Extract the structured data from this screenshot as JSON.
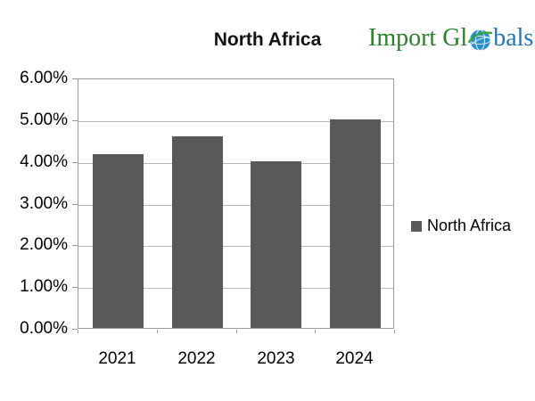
{
  "title": "North Africa",
  "logo": {
    "text_green": "Import Gl",
    "text_blue": "bals",
    "green_color": "#2c7f2c",
    "blue_color": "#2374b5",
    "globe_blue": "#2b8fce",
    "globe_green": "#3aa53a"
  },
  "chart_data": {
    "type": "bar",
    "title": "North Africa",
    "categories": [
      "2021",
      "2022",
      "2023",
      "2024"
    ],
    "series": [
      {
        "name": "North Africa",
        "values": [
          4.17,
          4.6,
          4.0,
          5.0
        ]
      }
    ],
    "value_unit": "%",
    "ylim": [
      0,
      6
    ],
    "ytick_step": 1,
    "ytick_labels": [
      "0.00%",
      "1.00%",
      "2.00%",
      "3.00%",
      "4.00%",
      "5.00%",
      "6.00%"
    ],
    "grid": true,
    "legend": {
      "position": "right",
      "entries": [
        {
          "label": "North Africa",
          "color": "#595959"
        }
      ]
    },
    "colors": {
      "bar": "#595959",
      "gridline": "#b7b7b7",
      "axis": "#9a9a9a",
      "text": "#000000"
    }
  }
}
